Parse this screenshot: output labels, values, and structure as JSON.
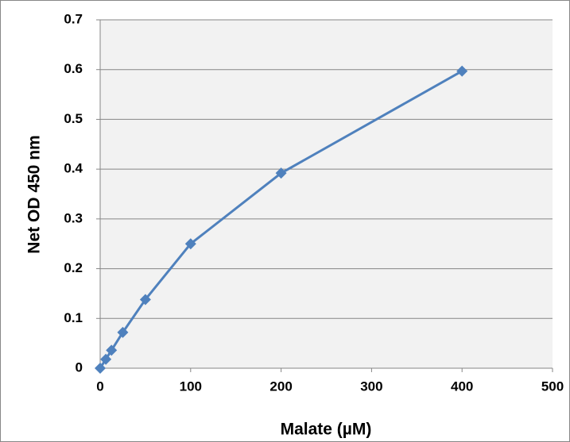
{
  "chart_data": {
    "type": "line",
    "x_label": "Malate (µM)",
    "y_label": "Net OD 450 nm",
    "x": [
      0,
      6.25,
      12.5,
      25,
      50,
      100,
      200,
      400
    ],
    "series": [
      {
        "name": "Net OD 450 nm",
        "color": "#4f81bd",
        "values": [
          0,
          0.018,
          0.036,
          0.072,
          0.138,
          0.25,
          0.392,
          0.597
        ]
      }
    ],
    "xlim": [
      0,
      500
    ],
    "xticks": [
      0,
      100,
      200,
      300,
      400,
      500
    ],
    "ylim": [
      0,
      0.7
    ],
    "yticks": [
      0,
      0.1,
      0.2,
      0.3,
      0.4,
      0.5,
      0.6,
      0.7
    ],
    "grid": true,
    "plot_background": "#f2f2f2"
  }
}
